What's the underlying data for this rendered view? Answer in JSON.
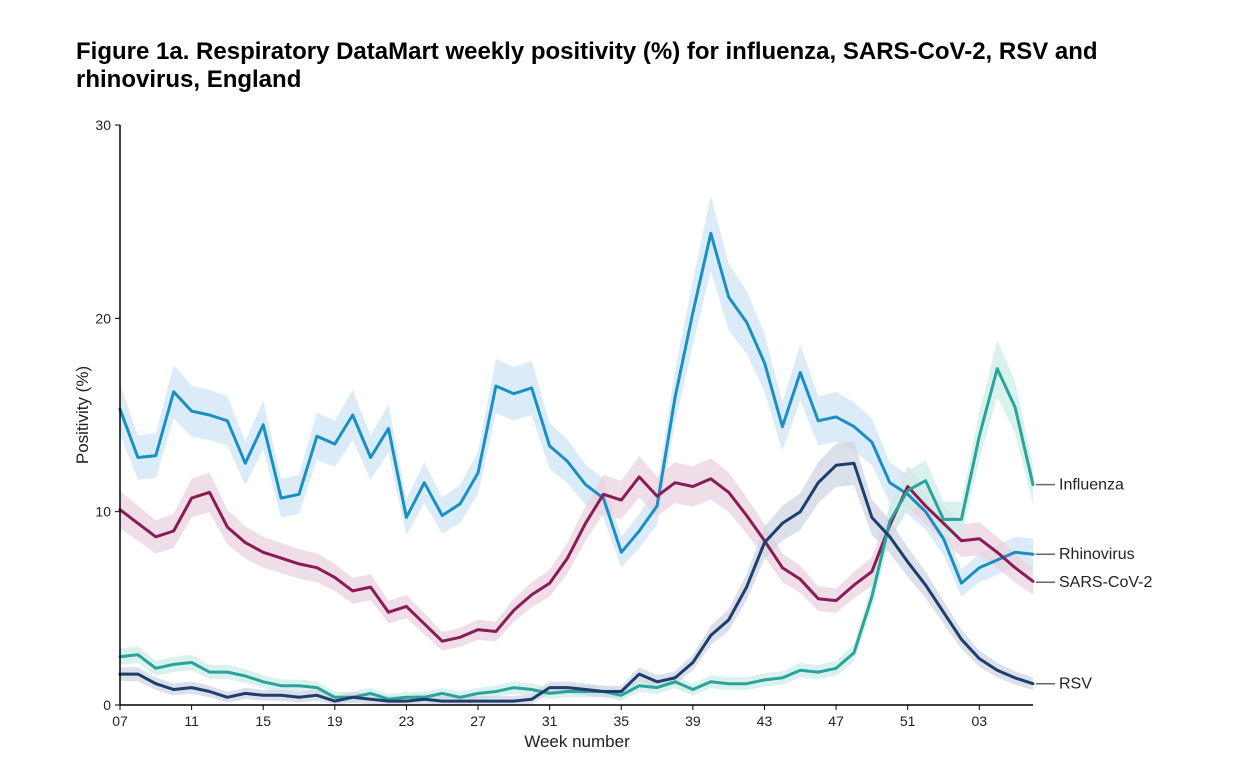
{
  "title": "Figure 1a. Respiratory DataMart weekly positivity (%) for influenza, SARS-CoV-2, RSV and rhinovirus, England",
  "chart_data": {
    "type": "line",
    "xlabel": "Week number",
    "ylabel": "Positivity (%)",
    "ylim": [
      0,
      30
    ],
    "yticks": [
      0,
      10,
      20,
      30
    ],
    "x_tick_labels": [
      "07",
      "11",
      "15",
      "19",
      "23",
      "27",
      "31",
      "35",
      "39",
      "43",
      "47",
      "51",
      "03"
    ],
    "x_tick_every": 4,
    "n_weeks": 52,
    "grid": false,
    "series": [
      {
        "name": "Rhinovirus",
        "color": "#1a8fc4",
        "band_color": "#cfe6f5",
        "values": [
          15.3,
          12.8,
          12.9,
          16.2,
          15.2,
          15.0,
          14.7,
          12.5,
          14.5,
          10.7,
          10.9,
          13.9,
          13.5,
          15.0,
          12.8,
          14.3,
          9.7,
          11.5,
          9.8,
          10.4,
          12.0,
          16.5,
          16.1,
          16.4,
          13.4,
          12.6,
          11.4,
          10.7,
          7.9,
          9.0,
          10.3,
          15.9,
          20.3,
          24.4,
          21.1,
          19.8,
          17.7,
          14.4,
          17.2,
          14.7,
          14.9,
          14.4,
          13.6,
          11.5,
          10.9,
          10.0,
          8.6,
          6.3,
          7.1,
          7.5,
          7.9,
          7.8
        ]
      },
      {
        "name": "SARS-CoV-2",
        "color": "#8a1c55",
        "band_color": "#ead3df",
        "values": [
          10.1,
          9.4,
          8.7,
          9.0,
          10.7,
          11.0,
          9.2,
          8.4,
          7.9,
          7.6,
          7.3,
          7.1,
          6.6,
          5.9,
          6.1,
          4.8,
          5.1,
          4.2,
          3.3,
          3.5,
          3.9,
          3.8,
          4.9,
          5.7,
          6.3,
          7.6,
          9.4,
          10.9,
          10.6,
          11.8,
          10.8,
          11.5,
          11.3,
          11.7,
          11.0,
          9.8,
          8.5,
          7.1,
          6.5,
          5.5,
          5.4,
          6.2,
          6.9,
          9.3,
          11.3,
          10.3,
          9.4,
          8.5,
          8.6,
          7.9,
          7.1,
          6.4
        ]
      },
      {
        "name": "Influenza",
        "color": "#2aa39a",
        "band_color": "#cdeee8",
        "values": [
          2.5,
          2.6,
          1.9,
          2.1,
          2.2,
          1.7,
          1.7,
          1.5,
          1.2,
          1.0,
          1.0,
          0.9,
          0.4,
          0.4,
          0.6,
          0.3,
          0.4,
          0.4,
          0.6,
          0.4,
          0.6,
          0.7,
          0.9,
          0.8,
          0.6,
          0.7,
          0.7,
          0.7,
          0.5,
          1.0,
          0.9,
          1.2,
          0.8,
          1.2,
          1.1,
          1.1,
          1.3,
          1.4,
          1.8,
          1.7,
          1.9,
          2.7,
          5.6,
          9.5,
          11.1,
          11.6,
          9.6,
          9.6,
          13.9,
          17.4,
          15.4,
          11.4
        ]
      },
      {
        "name": "RSV",
        "color": "#1f3e6e",
        "band_color": "#cfd6e3",
        "values": [
          1.6,
          1.6,
          1.1,
          0.8,
          0.9,
          0.7,
          0.4,
          0.6,
          0.5,
          0.5,
          0.4,
          0.5,
          0.2,
          0.4,
          0.3,
          0.2,
          0.2,
          0.3,
          0.2,
          0.2,
          0.2,
          0.2,
          0.2,
          0.3,
          0.9,
          0.9,
          0.8,
          0.7,
          0.7,
          1.6,
          1.2,
          1.4,
          2.2,
          3.6,
          4.4,
          6.1,
          8.4,
          9.4,
          10.0,
          11.5,
          12.4,
          12.5,
          9.7,
          8.7,
          7.4,
          6.2,
          4.8,
          3.4,
          2.4,
          1.8,
          1.4,
          1.1
        ]
      }
    ]
  }
}
